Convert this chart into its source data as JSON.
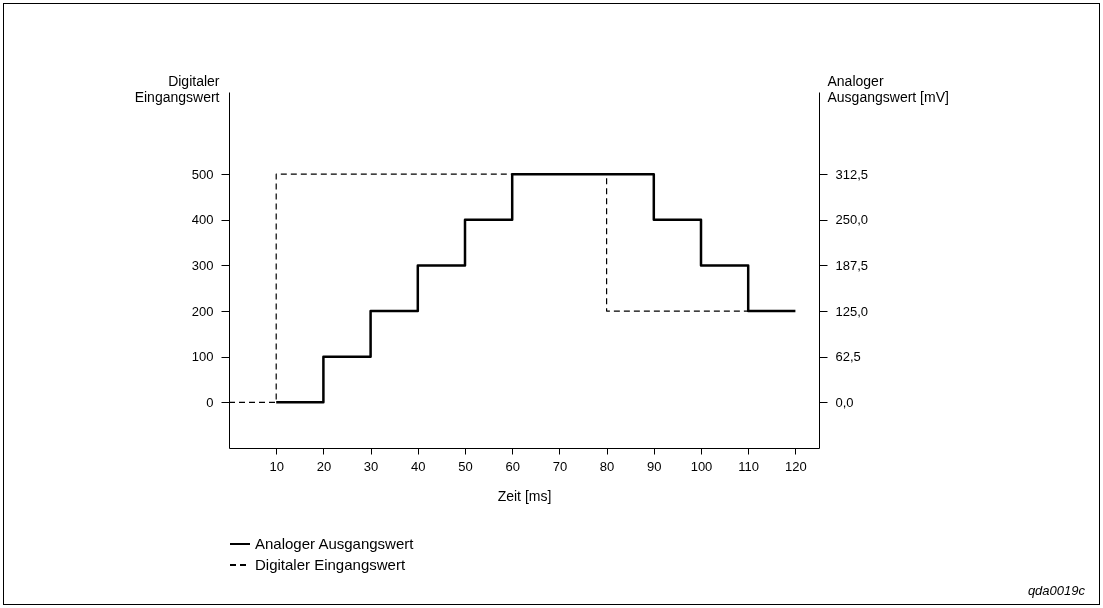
{
  "chart_data": {
    "type": "step",
    "xlabel": "Zeit [ms]",
    "ylabel": "Digitaler Eingangswert",
    "y2label": "Analoger Ausgangswert [mV]",
    "xlim": [
      0,
      125
    ],
    "xticks": [
      10,
      20,
      30,
      40,
      50,
      60,
      70,
      80,
      90,
      100,
      110,
      120
    ],
    "ylim": [
      -100,
      680
    ],
    "yticks": [
      0,
      100,
      200,
      300,
      400,
      500
    ],
    "y2lim": [
      -62.5,
      425
    ],
    "y2ticks": [
      {
        "value": 0,
        "label": "0,0"
      },
      {
        "value": 62.5,
        "label": "62,5"
      },
      {
        "value": 125,
        "label": "125,0"
      },
      {
        "value": 187.5,
        "label": "187,5"
      },
      {
        "value": 250,
        "label": "250,0"
      },
      {
        "value": 312.5,
        "label": "312,5"
      }
    ],
    "legend": "bottom",
    "grid": false,
    "annotations": [
      "qda0019c"
    ],
    "series": [
      {
        "name": "Analoger Ausgangswert",
        "color": "#000000",
        "line_style": "solid",
        "axis": "y2",
        "x": [
          10,
          20,
          30,
          40,
          50,
          60,
          70,
          80,
          90,
          100,
          110,
          120
        ],
        "values": [
          0,
          62.5,
          125,
          187.5,
          250,
          312.5,
          312.5,
          312.5,
          250,
          187.5,
          125,
          125
        ]
      },
      {
        "name": "Digitaler Eingangswert",
        "color": "#000000",
        "line_style": "dashed",
        "axis": "y",
        "x": [
          0,
          10,
          80,
          110
        ],
        "values": [
          0,
          500,
          200,
          200
        ]
      }
    ]
  }
}
